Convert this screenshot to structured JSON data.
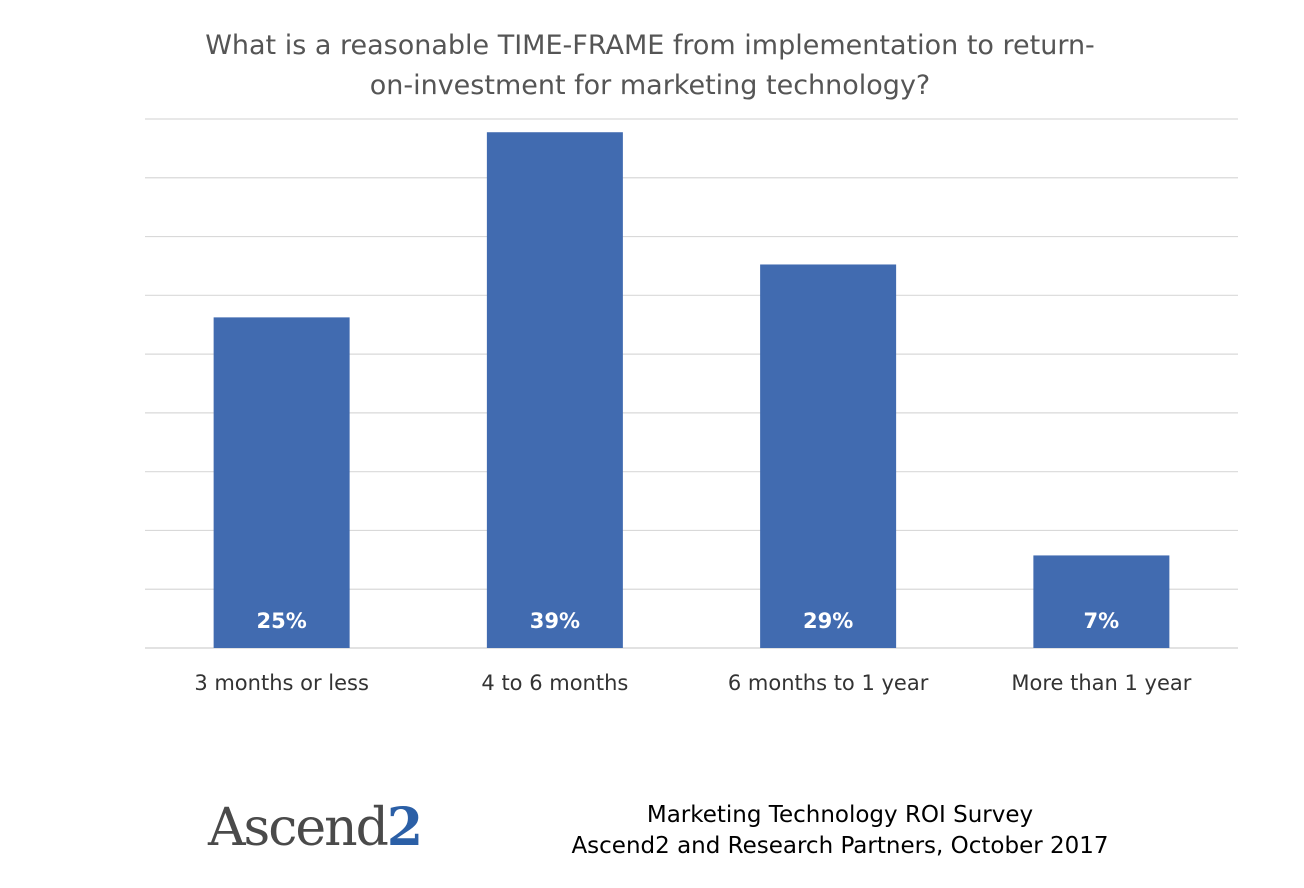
{
  "chart_data": {
    "type": "bar",
    "title_lines": [
      "What is a reasonable TIME-FRAME from implementation to return-",
      "on-investment for marketing technology?"
    ],
    "categories": [
      "3 months or less",
      "4 to 6 months",
      "6 months to 1 year",
      "More than 1 year"
    ],
    "values": [
      25,
      39,
      29,
      7
    ],
    "value_labels": [
      "25%",
      "39%",
      "29%",
      "7%"
    ],
    "ylim": [
      0,
      40
    ],
    "grid": true,
    "bar_color": "#416bb0",
    "grid_color": "#d9d9d9"
  },
  "footer": {
    "logo_text": "Ascend",
    "logo_suffix": "2",
    "source_line_1": "Marketing Technology ROI Survey",
    "source_line_2": "Ascend2 and Research Partners, October 2017"
  }
}
